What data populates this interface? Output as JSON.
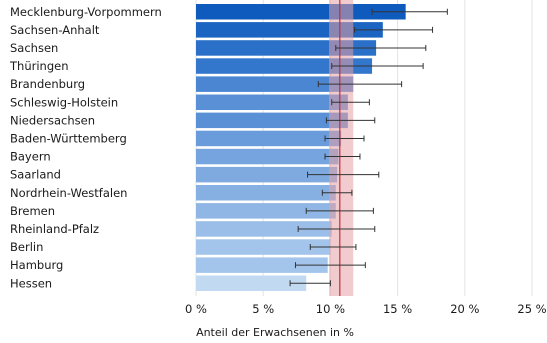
{
  "chart_data": {
    "type": "bar",
    "orientation": "horizontal",
    "categories": [
      "Mecklenburg-Vorpommern",
      "Sachsen-Anhalt",
      "Sachsen",
      "Thüringen",
      "Brandenburg",
      "Schleswig-Holstein",
      "Niedersachsen",
      "Baden-Württemberg",
      "Bayern",
      "Saarland",
      "Nordrhein-Westfalen",
      "Bremen",
      "Rheinland-Pfalz",
      "Berlin",
      "Hamburg",
      "Hessen"
    ],
    "values": [
      15.6,
      13.9,
      13.4,
      13.1,
      11.7,
      11.3,
      11.3,
      10.8,
      10.6,
      10.5,
      10.4,
      10.4,
      10.1,
      10.0,
      9.8,
      8.2
    ],
    "error_low": [
      13.1,
      11.8,
      10.4,
      10.1,
      9.1,
      10.1,
      9.7,
      9.6,
      9.6,
      8.3,
      9.4,
      8.2,
      7.6,
      8.5,
      7.4,
      7.0
    ],
    "error_high": [
      18.7,
      17.6,
      17.1,
      16.9,
      15.3,
      12.9,
      13.3,
      12.5,
      12.2,
      13.6,
      11.6,
      13.2,
      13.3,
      11.9,
      12.6,
      10.0
    ],
    "bar_colors": [
      "#0f5bbd",
      "#1c64c2",
      "#2a6fc8",
      "#3377cc",
      "#4a86d2",
      "#5a90d6",
      "#5a90d6",
      "#6a9bda",
      "#76a4de",
      "#7eaae0",
      "#86b0e2",
      "#8fb6e5",
      "#9abee8",
      "#a4c5eb",
      "#a4c5eb",
      "#c2d9f2"
    ],
    "reference": {
      "value": 10.7,
      "low": 9.9,
      "high": 11.7,
      "line_color": "#c0303a",
      "band_color": "#e8a0a6"
    },
    "xlim": [
      0,
      25
    ],
    "x_ticks": [
      0,
      5,
      10,
      15,
      20,
      25
    ],
    "x_tick_labels": [
      "0 %",
      "5 %",
      "10 %",
      "15 %",
      "20 %",
      "25 %"
    ],
    "xlabel": "Anteil der Erwachsenen in %",
    "grid": "vertical"
  }
}
